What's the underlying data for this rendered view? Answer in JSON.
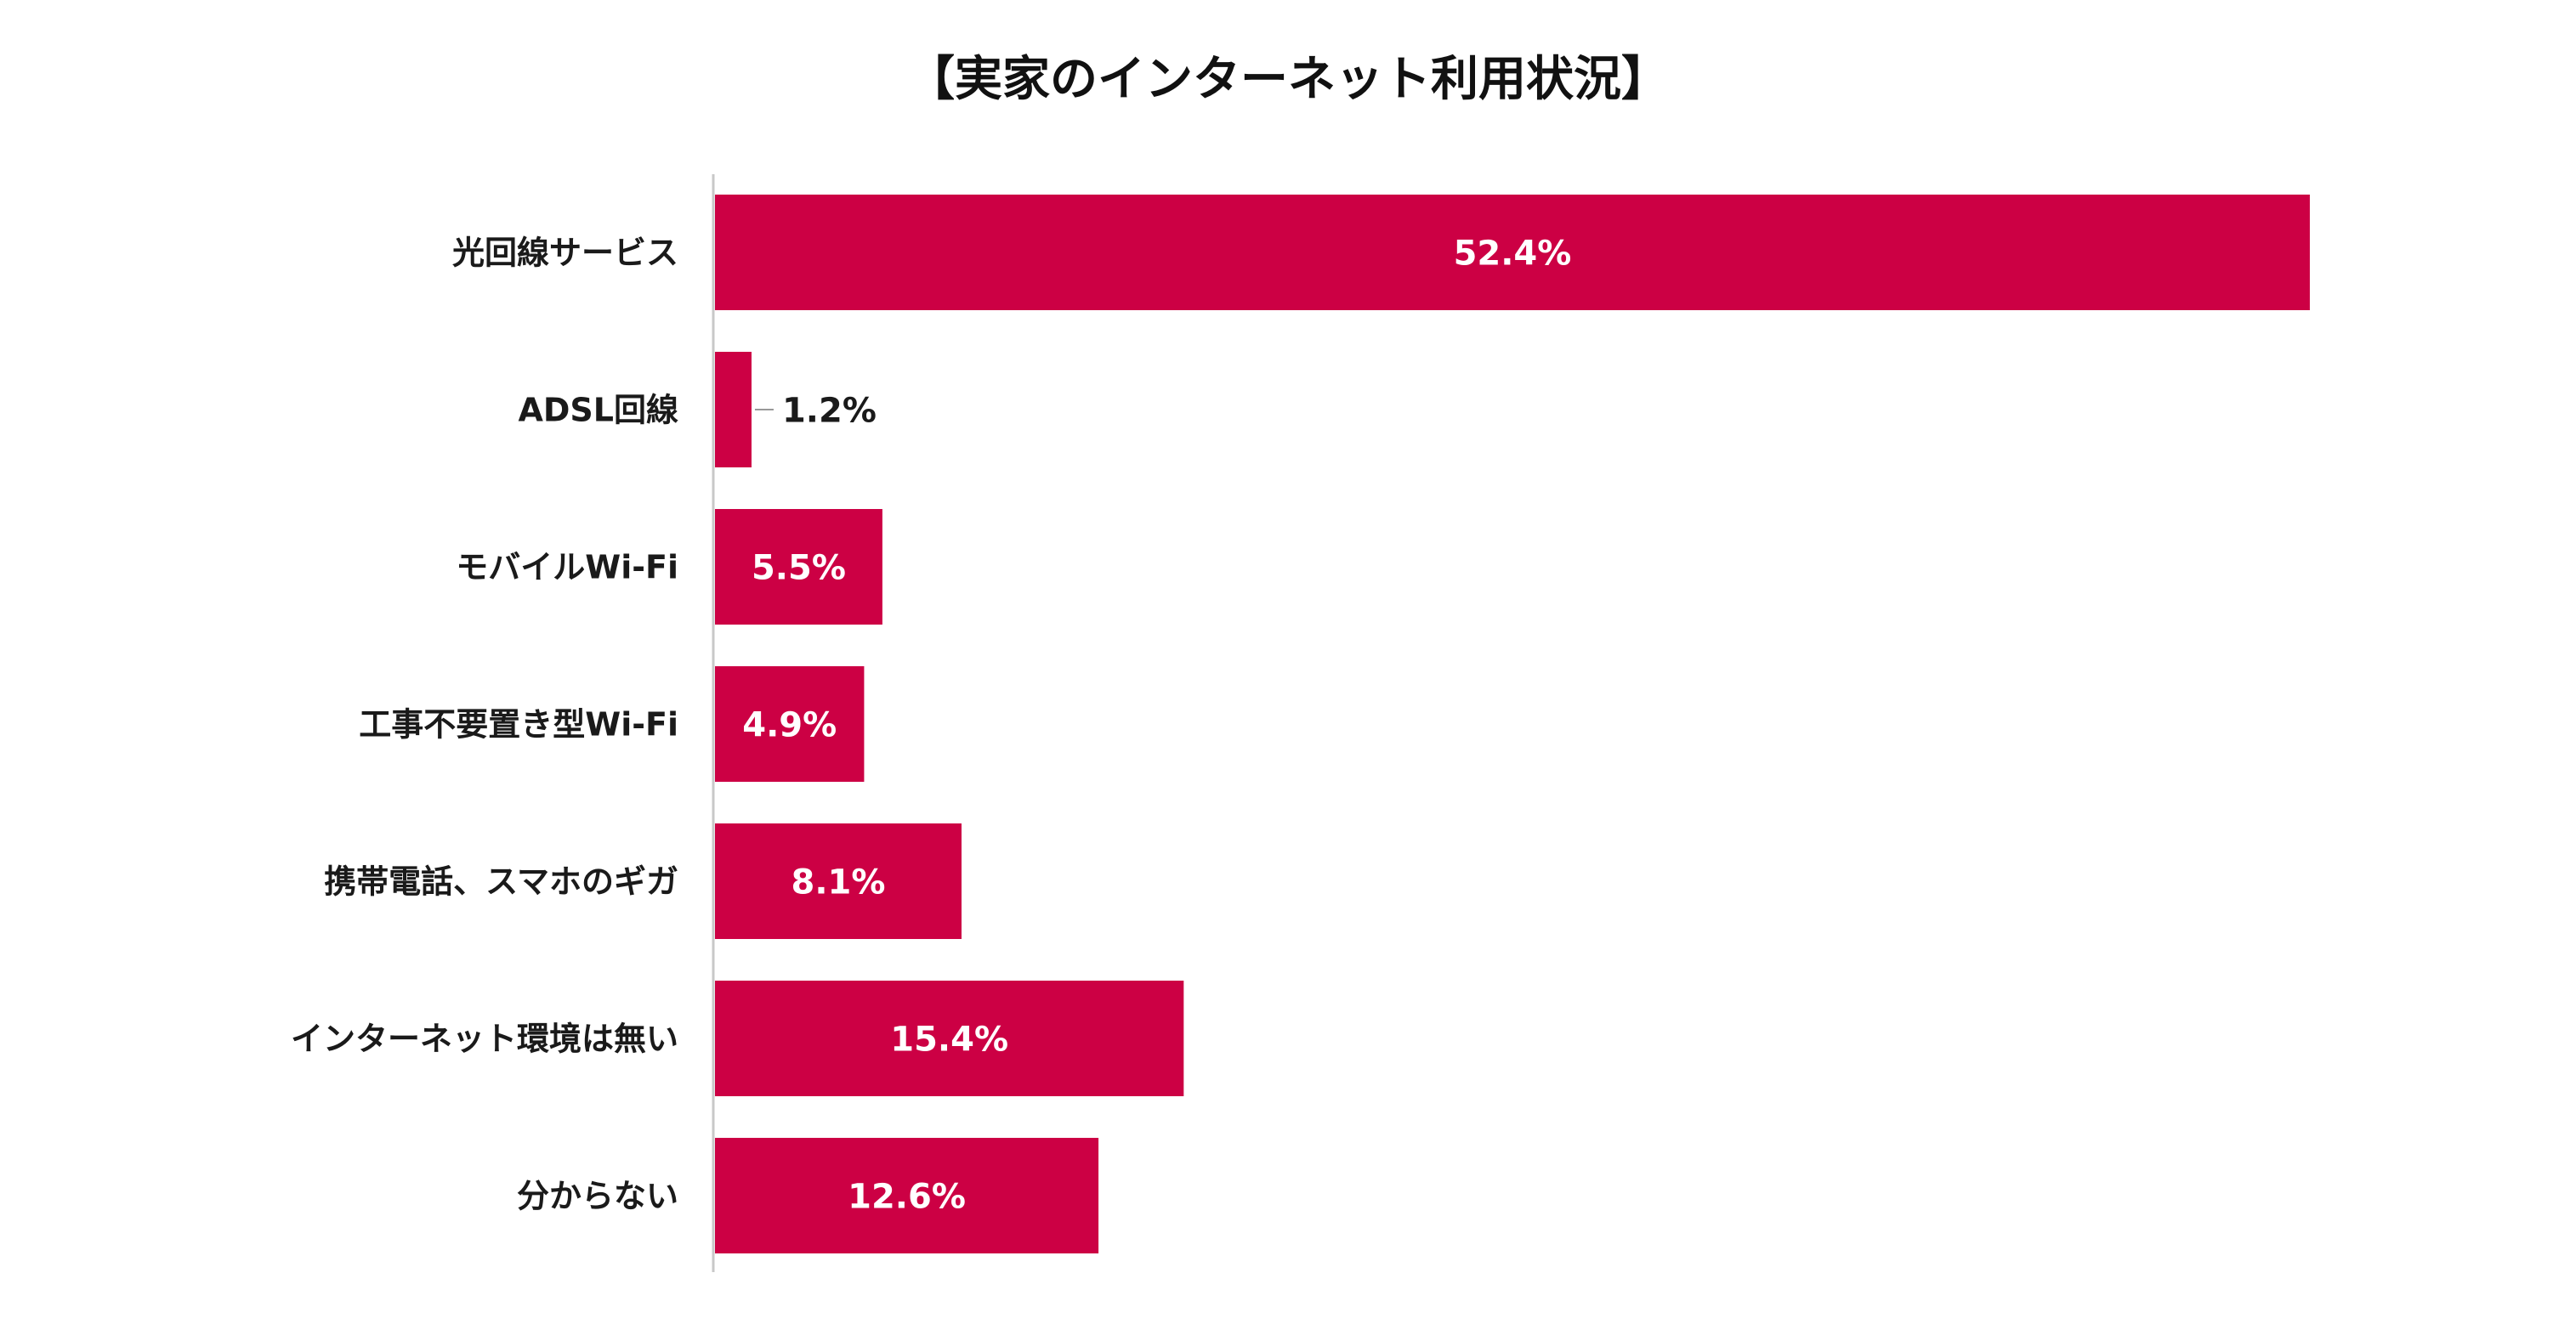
{
  "chart_data": {
    "type": "bar",
    "orientation": "horizontal",
    "title": "【実家のインターネット利用状況】",
    "categories": [
      "光回線サービス",
      "ADSL回線",
      "モバイルWi-Fi",
      "工事不要置き型Wi-Fi",
      "携帯電話、スマホのギガ",
      "インターネット環境は無い",
      "分からない"
    ],
    "values": [
      52.4,
      1.2,
      5.5,
      4.9,
      8.1,
      15.4,
      12.6
    ],
    "data_labels": [
      "52.4%",
      "1.2%",
      "5.5%",
      "4.9%",
      "8.1%",
      "15.4%",
      "12.6%"
    ],
    "unit": "%",
    "xlim": [
      0,
      60
    ],
    "grid": false,
    "legend": "none",
    "colors": {
      "bar": "#cc0044",
      "axis": "#c8c8c8",
      "label_inside": "#ffffff",
      "label_outside": "#1a1a1a",
      "category_text": "#1a1a1a",
      "title_text": "#111111"
    }
  }
}
